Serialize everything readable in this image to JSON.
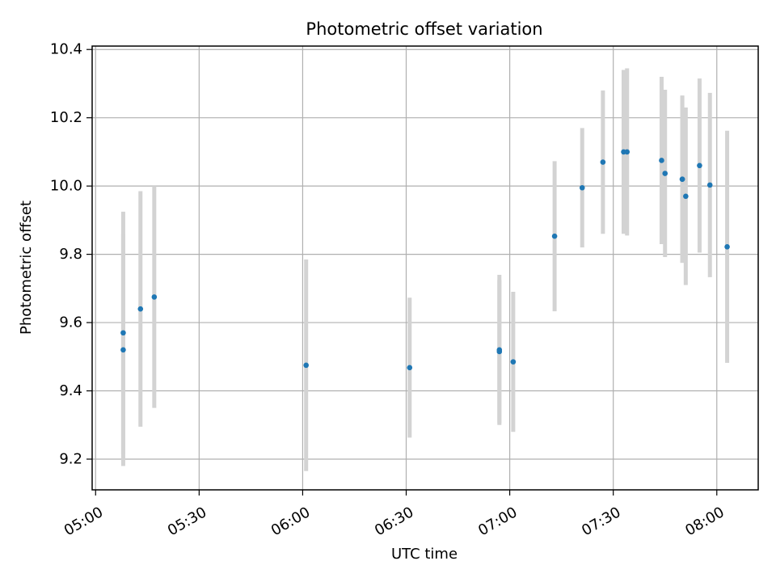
{
  "chart_data": {
    "type": "scatter",
    "title": "Photometric offset variation",
    "xlabel": "UTC time",
    "ylabel": "Photometric offset",
    "x_axis_kind": "time",
    "x_ticks": [
      "05:00",
      "05:30",
      "06:00",
      "06:30",
      "07:00",
      "07:30",
      "08:00"
    ],
    "y_ticks": [
      "9.2",
      "9.4",
      "9.6",
      "9.8",
      "10.0",
      "10.2",
      "10.4"
    ],
    "xlim": [
      "04:59",
      "08:12"
    ],
    "ylim": [
      9.11,
      10.41
    ],
    "grid": true,
    "point_color": "#1f77b4",
    "errorbar_color": "#d3d3d3",
    "points": [
      {
        "x": "05:08",
        "y": 9.52,
        "yerr": 0.34
      },
      {
        "x": "05:08",
        "y": 9.57,
        "yerr": 0.355
      },
      {
        "x": "05:13",
        "y": 9.64,
        "yerr": 0.345
      },
      {
        "x": "05:17",
        "y": 9.675,
        "yerr": 0.325
      },
      {
        "x": "06:01",
        "y": 9.475,
        "yerr": 0.31
      },
      {
        "x": "06:31",
        "y": 9.468,
        "yerr": 0.205
      },
      {
        "x": "06:57",
        "y": 9.52,
        "yerr": 0.22
      },
      {
        "x": "06:57",
        "y": 9.515,
        "yerr": 0.21
      },
      {
        "x": "07:01",
        "y": 9.485,
        "yerr": 0.205
      },
      {
        "x": "07:13",
        "y": 9.853,
        "yerr": 0.22
      },
      {
        "x": "07:21",
        "y": 9.995,
        "yerr": 0.175
      },
      {
        "x": "07:27",
        "y": 10.07,
        "yerr": 0.21
      },
      {
        "x": "07:33",
        "y": 10.1,
        "yerr": 0.24
      },
      {
        "x": "07:34",
        "y": 10.1,
        "yerr": 0.245
      },
      {
        "x": "07:44",
        "y": 10.075,
        "yerr": 0.245
      },
      {
        "x": "07:45",
        "y": 10.037,
        "yerr": 0.245
      },
      {
        "x": "07:50",
        "y": 10.02,
        "yerr": 0.245
      },
      {
        "x": "07:50",
        "y": 10.02,
        "yerr": 0.245
      },
      {
        "x": "07:51",
        "y": 9.97,
        "yerr": 0.26
      },
      {
        "x": "07:55",
        "y": 10.06,
        "yerr": 0.255
      },
      {
        "x": "07:58",
        "y": 10.003,
        "yerr": 0.27
      },
      {
        "x": "08:03",
        "y": 9.822,
        "yerr": 0.34
      }
    ]
  }
}
